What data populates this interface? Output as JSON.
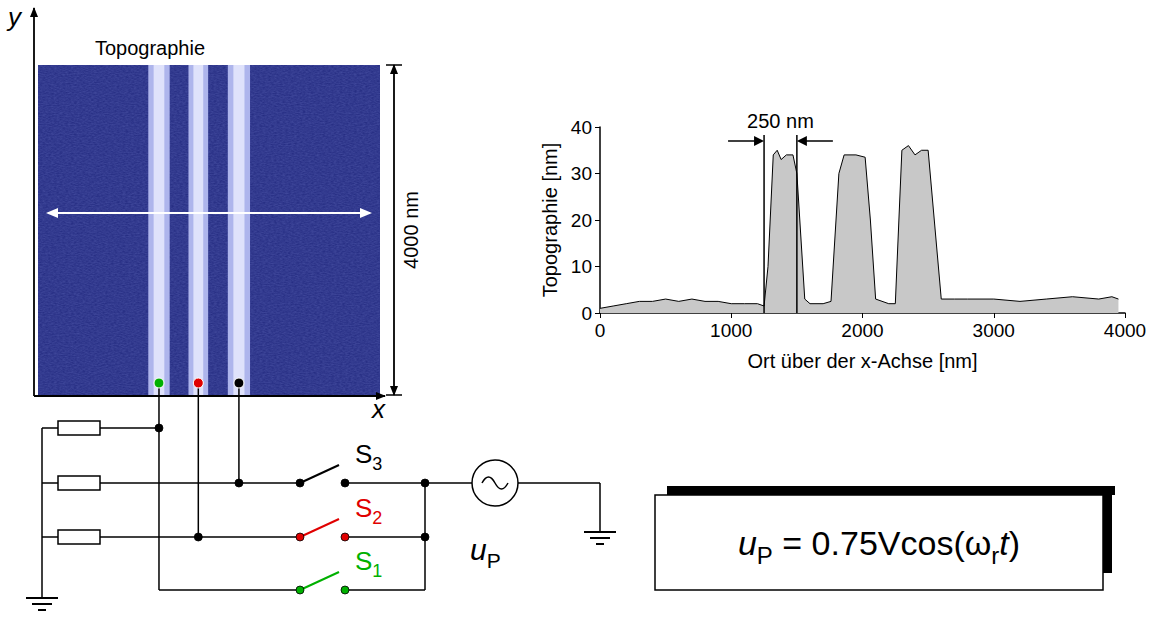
{
  "chart_data": {
    "type": "area",
    "color": "#c8c8c8",
    "grid": false,
    "x_label": "Ort über der x-Achse [nm]",
    "y_label": "Topographie [nm]",
    "x": [
      0,
      100,
      200,
      300,
      400,
      500,
      600,
      700,
      800,
      900,
      1000,
      1100,
      1200,
      1250,
      1280,
      1320,
      1350,
      1380,
      1420,
      1470,
      1500,
      1560,
      1600,
      1700,
      1760,
      1820,
      1860,
      1950,
      2020,
      2060,
      2100,
      2200,
      2250,
      2300,
      2350,
      2400,
      2450,
      2500,
      2600,
      2700,
      2800,
      3000,
      3200,
      3400,
      3600,
      3800,
      3900,
      3950
    ],
    "values": [
      1,
      1.5,
      2,
      2.5,
      2.5,
      3,
      2.5,
      3,
      2.5,
      2.5,
      2,
      2,
      2,
      1.5,
      10,
      34,
      35,
      33,
      34,
      34,
      30,
      3,
      2,
      2,
      2.5,
      30,
      34,
      34,
      33.5,
      20,
      3,
      2,
      2,
      35,
      36,
      34,
      35,
      35,
      3,
      3,
      3,
      3,
      2.5,
      3,
      3.5,
      3,
      3.5,
      3
    ],
    "xlim": [
      0,
      4000
    ],
    "xticks": [
      0,
      1000,
      2000,
      3000,
      4000
    ],
    "ylim": [
      0,
      40
    ],
    "yticks": [
      0,
      10,
      20,
      30,
      40
    ],
    "annotations": [
      {
        "text": "250 nm",
        "x": [
          1250,
          1500
        ],
        "y": 37
      }
    ]
  },
  "image": {
    "title": "Topographie",
    "x_axis": "x",
    "y_axis": "y",
    "size_label": "4000 nm",
    "size": 4000,
    "stripes": [
      [
        1290,
        1540
      ],
      [
        1760,
        1990
      ],
      [
        2220,
        2480
      ]
    ]
  },
  "circuit": {
    "switches": [
      {
        "label": "S",
        "sub": "1",
        "color": "#00b000"
      },
      {
        "label": "S",
        "sub": "2",
        "color": "#e00000"
      },
      {
        "label": "S",
        "sub": "3",
        "color": "#000000"
      }
    ],
    "source": {
      "label": "u",
      "sub": "P"
    }
  },
  "formula": [
    {
      "text": "u",
      "italic": true
    },
    {
      "text": "P",
      "sub": true
    },
    {
      "text": " = 0.75Vcos(ω"
    },
    {
      "text": "r",
      "sub": true
    },
    {
      "text": "t",
      "italic": true
    },
    {
      "text": ")"
    }
  ]
}
